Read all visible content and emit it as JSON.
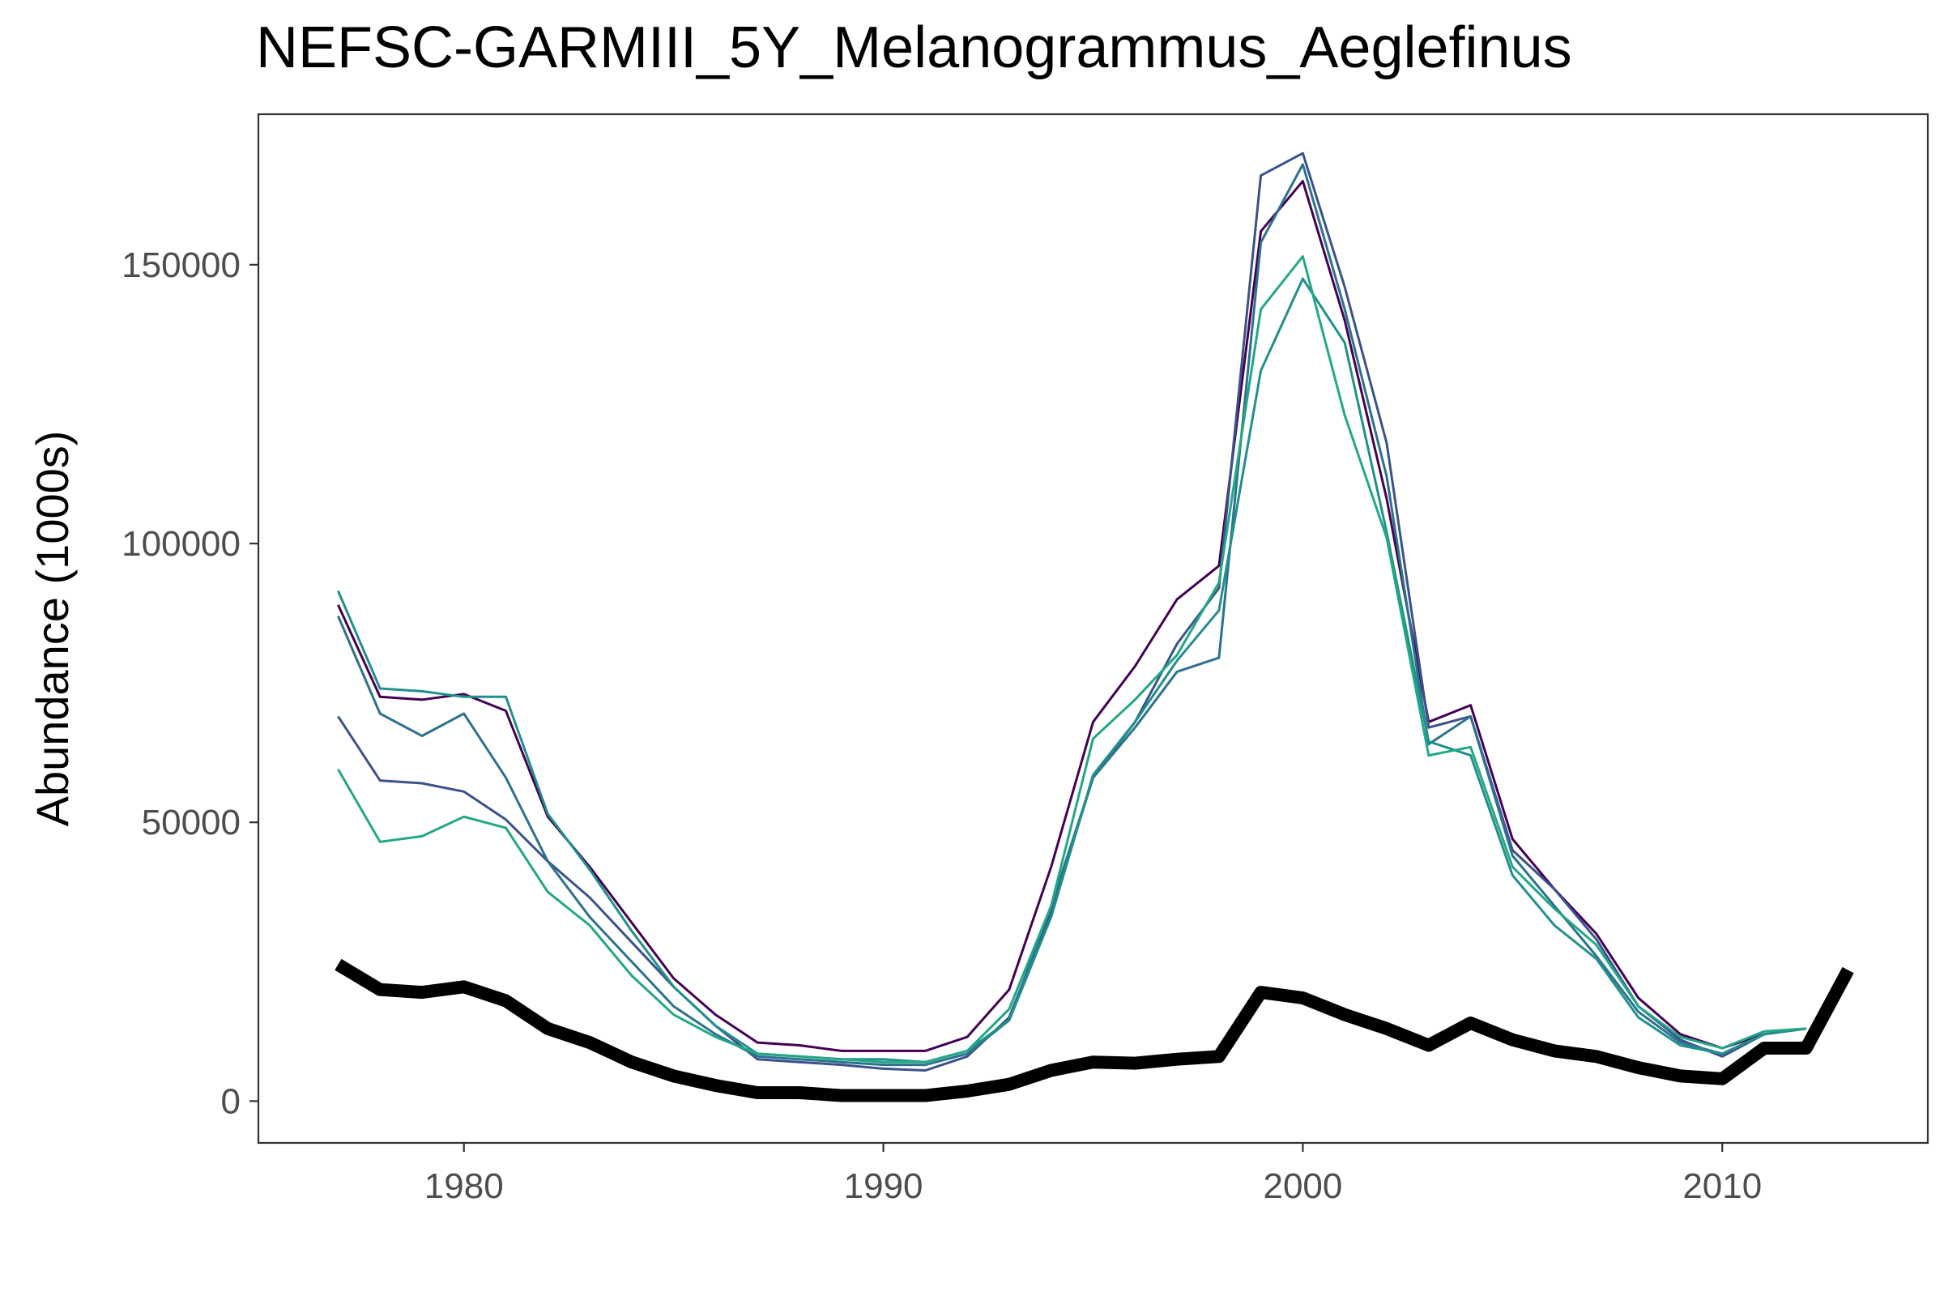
{
  "chart_data": {
    "type": "line",
    "title": "NEFSC-GARMIII_5Y_Melanogrammus_Aeglefinus",
    "xlabel": "",
    "ylabel": "Abundance (1000s)",
    "xlim": [
      1975.1,
      2014.9
    ],
    "ylim": [
      -7500,
      177000
    ],
    "x_ticks": [
      1980,
      1990,
      2000,
      2010
    ],
    "y_ticks": [
      0,
      50000,
      100000,
      150000
    ],
    "grid": false,
    "legend": "none",
    "series": [
      {
        "color": "#440154",
        "width": 3,
        "x": [
          1977,
          1978,
          1979,
          1980,
          1981,
          1982,
          1983,
          1984,
          1985,
          1986,
          1987,
          1988,
          1989,
          1990,
          1991,
          1992,
          1993,
          1994,
          1995,
          1996,
          1997,
          1998,
          1999,
          2000,
          2001,
          2002,
          2003,
          2004,
          2005,
          2006,
          2007,
          2008,
          2009,
          2010,
          2011,
          2012
        ],
        "y": [
          89000,
          72500,
          72000,
          73000,
          70000,
          51000,
          42000,
          32000,
          22000,
          15500,
          10500,
          10000,
          9000,
          9000,
          9000,
          11500,
          20000,
          42000,
          68000,
          78000,
          90000,
          96000,
          156000,
          165000,
          140000,
          108000,
          68000,
          71000,
          47000,
          38000,
          30000,
          18500,
          12000,
          9500,
          12000,
          13000
        ]
      },
      {
        "color": "#3b528b",
        "width": 3,
        "x": [
          1977,
          1978,
          1979,
          1980,
          1981,
          1982,
          1983,
          1984,
          1985,
          1986,
          1987,
          1988,
          1989,
          1990,
          1991,
          1992,
          1993,
          1994,
          1995,
          1996,
          1997,
          1998,
          1999,
          2000,
          2001,
          2002,
          2003,
          2004,
          2005,
          2006,
          2007,
          2008,
          2009,
          2010,
          2011,
          2012
        ],
        "y": [
          69000,
          57500,
          57000,
          55500,
          50500,
          43000,
          36500,
          28500,
          20500,
          13500,
          7500,
          7000,
          6500,
          5800,
          5500,
          8000,
          15000,
          34000,
          58000,
          68000,
          82000,
          92000,
          166000,
          170000,
          146000,
          118000,
          67000,
          69000,
          45000,
          38000,
          29000,
          17000,
          11000,
          8000,
          12000,
          13000
        ]
      },
      {
        "color": "#2c728e",
        "width": 3,
        "x": [
          1977,
          1978,
          1979,
          1980,
          1981,
          1982,
          1983,
          1984,
          1985,
          1986,
          1987,
          1988,
          1989,
          1990,
          1991,
          1992,
          1993,
          1994,
          1995,
          1996,
          1997,
          1998,
          1999,
          2000,
          2001,
          2002,
          2003,
          2004,
          2005,
          2006,
          2007,
          2008,
          2009,
          2010,
          2011,
          2012
        ],
        "y": [
          87000,
          69500,
          65500,
          69500,
          58000,
          43000,
          33000,
          25000,
          17000,
          12000,
          8000,
          7500,
          7000,
          6500,
          6500,
          8500,
          14500,
          35000,
          58000,
          67000,
          77000,
          79500,
          154000,
          168000,
          142000,
          112000,
          64000,
          69000,
          44000,
          35000,
          26000,
          16000,
          10500,
          8500,
          12000,
          13000
        ]
      },
      {
        "color": "#21908d",
        "width": 3,
        "x": [
          1977,
          1978,
          1979,
          1980,
          1981,
          1982,
          1983,
          1984,
          1985,
          1986,
          1987,
          1988,
          1989,
          1990,
          1991,
          1992,
          1993,
          1994,
          1995,
          1996,
          1997,
          1998,
          1999,
          2000,
          2001,
          2002,
          2003,
          2004,
          2005,
          2006,
          2007,
          2008,
          2009,
          2010,
          2011,
          2012
        ],
        "y": [
          91500,
          74000,
          73500,
          72500,
          72500,
          51500,
          41500,
          30500,
          20500,
          13500,
          8500,
          8000,
          7500,
          7500,
          7000,
          9000,
          14500,
          33000,
          58500,
          68000,
          79000,
          88000,
          131000,
          147500,
          136000,
          102000,
          64500,
          62000,
          40500,
          31500,
          25500,
          15000,
          10000,
          8500,
          12000,
          13000
        ]
      },
      {
        "color": "#22a884",
        "width": 3,
        "x": [
          1977,
          1978,
          1979,
          1980,
          1981,
          1982,
          1983,
          1984,
          1985,
          1986,
          1987,
          1988,
          1989,
          1990,
          1991,
          1992,
          1993,
          1994,
          1995,
          1996,
          1997,
          1998,
          1999,
          2000,
          2001,
          2002,
          2003,
          2004,
          2005,
          2006,
          2007,
          2008,
          2009,
          2010,
          2011,
          2012
        ],
        "y": [
          59500,
          46500,
          47500,
          51000,
          49000,
          37500,
          31500,
          22500,
          15500,
          11500,
          8500,
          8000,
          7500,
          7000,
          7000,
          9000,
          16500,
          35000,
          65000,
          72000,
          80000,
          93000,
          142000,
          151500,
          123000,
          101000,
          62000,
          63500,
          42000,
          34500,
          28000,
          17000,
          11500,
          9500,
          12500,
          13000
        ]
      },
      {
        "color": "#000000",
        "width": 16,
        "x": [
          1977,
          1978,
          1979,
          1980,
          1981,
          1982,
          1983,
          1984,
          1985,
          1986,
          1987,
          1988,
          1989,
          1990,
          1991,
          1992,
          1993,
          1994,
          1995,
          1996,
          1997,
          1998,
          1999,
          2000,
          2001,
          2002,
          2003,
          2004,
          2005,
          2006,
          2007,
          2008,
          2009,
          2010,
          2011,
          2012,
          2013
        ],
        "y": [
          24500,
          20000,
          19500,
          20500,
          18000,
          13000,
          10500,
          7000,
          4500,
          2800,
          1500,
          1500,
          1000,
          1000,
          1000,
          1800,
          3000,
          5500,
          7000,
          6800,
          7500,
          8000,
          19500,
          18500,
          15500,
          13000,
          10000,
          14000,
          11000,
          9000,
          8000,
          6000,
          4500,
          4000,
          9500,
          9500,
          23500
        ]
      }
    ]
  }
}
